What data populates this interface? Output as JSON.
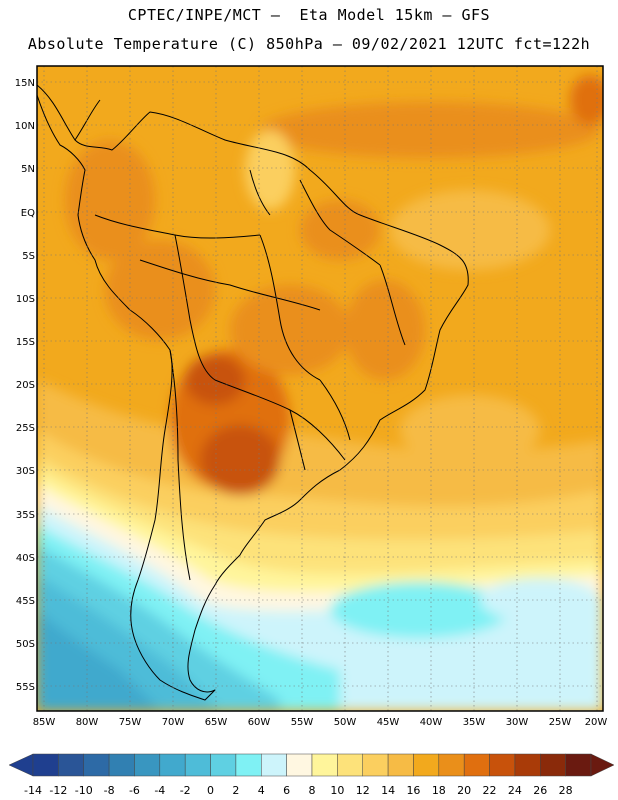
{
  "header": {
    "line1": "CPTEC/INPE/MCT –  Eta Model 15km – GFS",
    "line2": "Absolute Temperature (C) 850hPa – 09/02/2021 12UTC fct=122h"
  },
  "axes": {
    "lat_labels": [
      "15N",
      "10N",
      "5N",
      "EQ",
      "5S",
      "10S",
      "15S",
      "20S",
      "25S",
      "30S",
      "35S",
      "40S",
      "45S",
      "50S",
      "55S"
    ],
    "lon_labels": [
      "85W",
      "80W",
      "75W",
      "70W",
      "65W",
      "60W",
      "55W",
      "50W",
      "45W",
      "40W",
      "35W",
      "30W",
      "25W",
      "20W"
    ]
  },
  "colorbar": {
    "labels": [
      "-14",
      "-12",
      "-10",
      "-8",
      "-6",
      "-4",
      "-2",
      "0",
      "2",
      "4",
      "6",
      "8",
      "10",
      "12",
      "14",
      "16",
      "18",
      "20",
      "22",
      "24",
      "26",
      "28"
    ],
    "colors": [
      "#1f3f8f",
      "#2a5597",
      "#2d6aa6",
      "#3180b2",
      "#3996c0",
      "#41a9cd",
      "#4ebcd8",
      "#5fd0e2",
      "#7ff1f4",
      "#cdf4fb",
      "#fff7e1",
      "#fff59b",
      "#fde27a",
      "#fbcf5f",
      "#f6bb45",
      "#f2a91d",
      "#ea8f1a",
      "#e06f0f",
      "#c8520b",
      "#a93b08",
      "#8a2a0a",
      "#6a1a10"
    ],
    "low_arrow_color": "#1f3f8f",
    "high_arrow_color": "#6a1a10"
  }
}
